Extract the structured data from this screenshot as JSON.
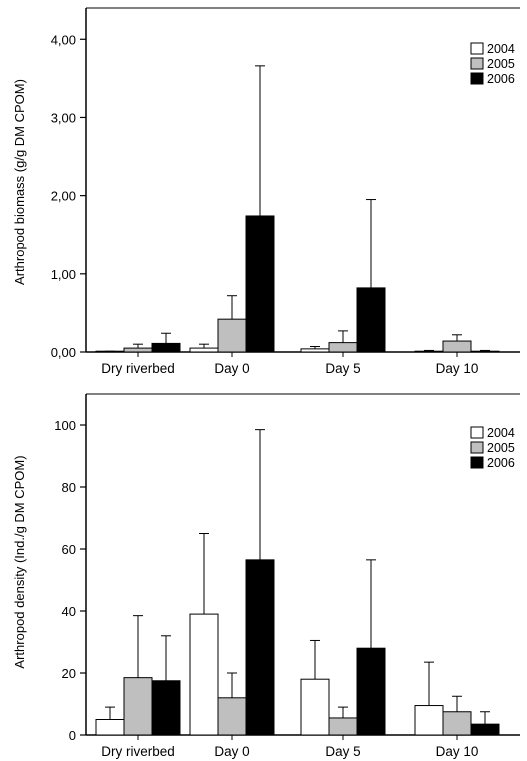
{
  "chart_data": [
    {
      "type": "bar",
      "categories": [
        "Dry riverbed",
        "Day 0",
        "Day 5",
        "Day 10"
      ],
      "ylabel": "Arthropod biomass (g/g DM CPOM)",
      "xlabel": "",
      "ylim": [
        0,
        4.4
      ],
      "yticks": [
        0,
        1,
        2,
        3,
        4
      ],
      "ytick_labels": [
        "0,00",
        "1,00",
        "2,00",
        "3,00",
        "4,00"
      ],
      "grid": false,
      "legend_position": "top-right",
      "series": [
        {
          "name": "2004",
          "color": "#ffffff",
          "values": [
            0.0,
            0.05,
            0.04,
            0.01
          ],
          "errors": [
            0.01,
            0.05,
            0.03,
            0.01
          ]
        },
        {
          "name": "2005",
          "color": "#bfbfbf",
          "values": [
            0.05,
            0.42,
            0.12,
            0.14
          ],
          "errors": [
            0.05,
            0.3,
            0.15,
            0.08
          ]
        },
        {
          "name": "2006",
          "color": "#000000",
          "values": [
            0.11,
            1.74,
            0.82,
            0.01
          ],
          "errors": [
            0.13,
            1.92,
            1.13,
            0.01
          ]
        }
      ]
    },
    {
      "type": "bar",
      "categories": [
        "Dry riverbed",
        "Day 0",
        "Day 5",
        "Day 10"
      ],
      "ylabel": "Arthropod density (Ind./g DM CPOM)",
      "xlabel": "",
      "ylim": [
        0,
        110
      ],
      "yticks": [
        0,
        20,
        40,
        60,
        80,
        100
      ],
      "ytick_labels": [
        "0",
        "20",
        "40",
        "60",
        "80",
        "100"
      ],
      "grid": false,
      "legend_position": "top-right",
      "series": [
        {
          "name": "2004",
          "color": "#ffffff",
          "values": [
            5,
            39,
            18,
            9.5
          ],
          "errors": [
            4,
            26,
            12.5,
            14
          ]
        },
        {
          "name": "2005",
          "color": "#bfbfbf",
          "values": [
            18.5,
            12,
            5.5,
            7.5
          ],
          "errors": [
            20,
            8,
            3.5,
            5
          ]
        },
        {
          "name": "2006",
          "color": "#000000",
          "values": [
            17.5,
            56.5,
            28,
            3.5
          ],
          "errors": [
            14.5,
            42,
            28.5,
            4
          ]
        }
      ]
    }
  ]
}
